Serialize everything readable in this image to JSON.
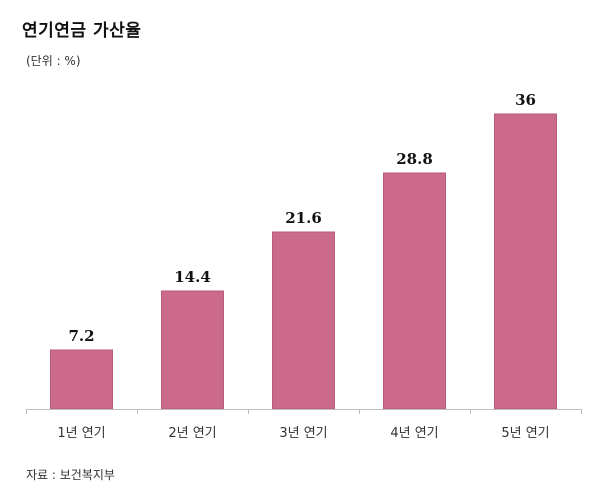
{
  "title": "연기연금 가산율",
  "unit": "(단위 : %)",
  "source": "자료 : 보건복지부",
  "chart_data": {
    "type": "bar",
    "categories": [
      "1년 연기",
      "2년 연기",
      "3년 연기",
      "4년 연기",
      "5년 연기"
    ],
    "values": [
      7.2,
      14.4,
      21.6,
      28.8,
      36
    ],
    "value_labels": [
      "7.2",
      "14.4",
      "21.6",
      "28.8",
      "36"
    ],
    "title": "연기연금 가산율",
    "xlabel": "",
    "ylabel": "",
    "ylim": [
      0,
      36
    ],
    "grid": false,
    "legend": "none",
    "bar_color": "#cc6a8c",
    "bar_edge_color": "#b85a7a"
  }
}
